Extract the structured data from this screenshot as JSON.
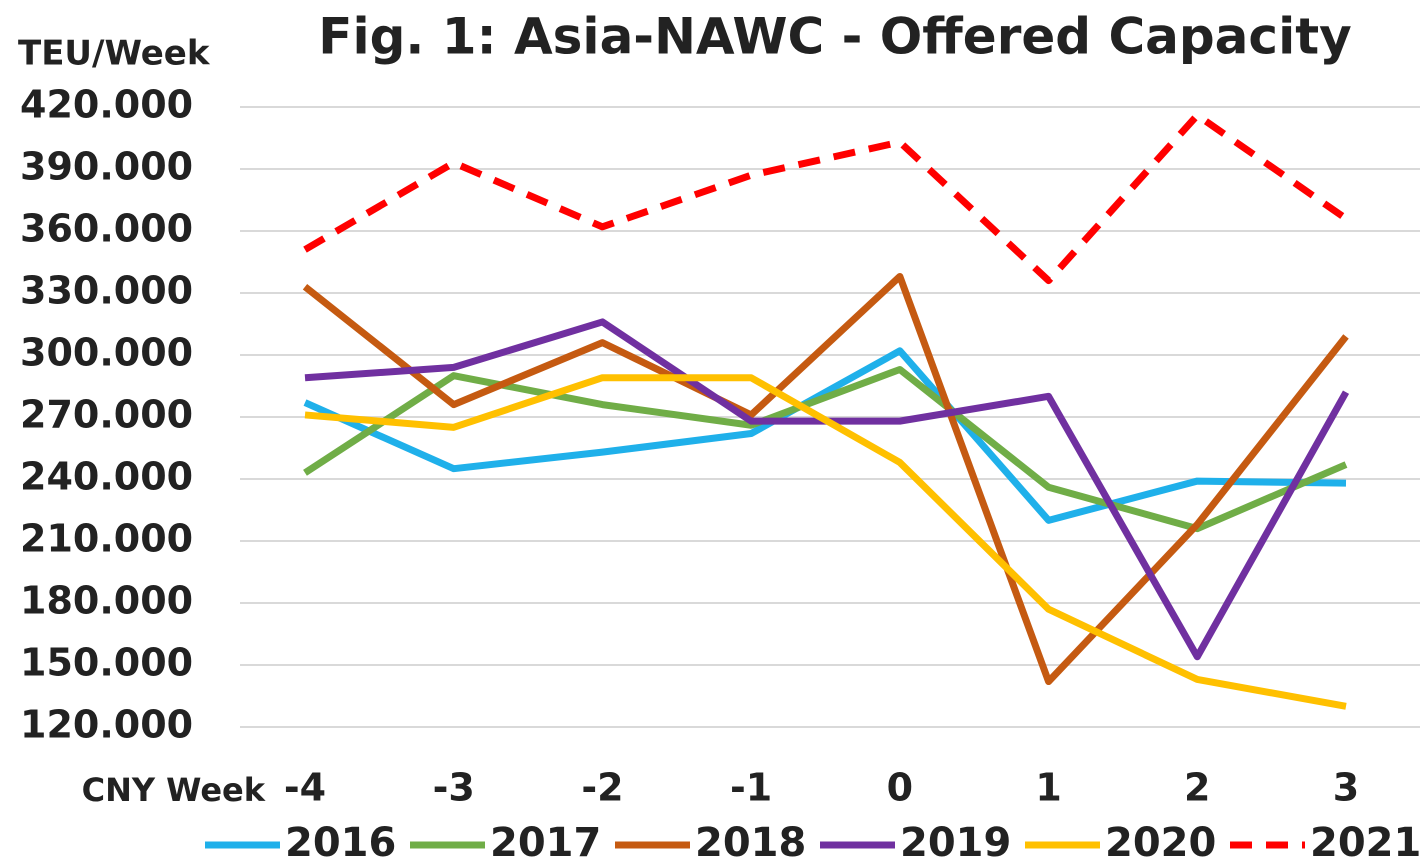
{
  "chart_data": {
    "type": "line",
    "title": "Fig. 1: Asia-NAWC - Offered Capacity",
    "y_label": "TEU/Week",
    "x_label": "CNY Week",
    "categories": [
      "-4",
      "-3",
      "-2",
      "-1",
      "0",
      "1",
      "2",
      "3"
    ],
    "ylim": [
      120000,
      420000
    ],
    "yticks": [
      {
        "value": 120000,
        "label": "120.000"
      },
      {
        "value": 150000,
        "label": "150.000"
      },
      {
        "value": 180000,
        "label": "180.000"
      },
      {
        "value": 210000,
        "label": "210.000"
      },
      {
        "value": 240000,
        "label": "240.000"
      },
      {
        "value": 270000,
        "label": "270.000"
      },
      {
        "value": 300000,
        "label": "300.000"
      },
      {
        "value": 330000,
        "label": "330.000"
      },
      {
        "value": 360000,
        "label": "360.000"
      },
      {
        "value": 390000,
        "label": "390.000"
      },
      {
        "value": 420000,
        "label": "420.000"
      }
    ],
    "grid": true,
    "legend": "bottom",
    "series": [
      {
        "name": "2016",
        "color": "#1fb0ea",
        "values": [
          277000,
          245000,
          253000,
          262000,
          302000,
          220000,
          239000,
          238000
        ]
      },
      {
        "name": "2017",
        "color": "#70ad47",
        "values": [
          243000,
          290000,
          276000,
          266000,
          293000,
          236000,
          216000,
          247000
        ]
      },
      {
        "name": "2018",
        "color": "#c55a11",
        "values": [
          333000,
          276000,
          306000,
          271000,
          338000,
          142000,
          218000,
          309000
        ]
      },
      {
        "name": "2019",
        "color": "#7030a0",
        "values": [
          289000,
          294000,
          316000,
          268000,
          268000,
          280000,
          154000,
          282000
        ]
      },
      {
        "name": "2020",
        "color": "#ffc000",
        "values": [
          271000,
          265000,
          289000,
          289000,
          248000,
          177000,
          143000,
          130000
        ]
      },
      {
        "name": "2021",
        "color": "#ff0000",
        "dashed": true,
        "values": [
          351000,
          393000,
          362000,
          387000,
          403000,
          336000,
          416000,
          366000
        ]
      }
    ]
  }
}
